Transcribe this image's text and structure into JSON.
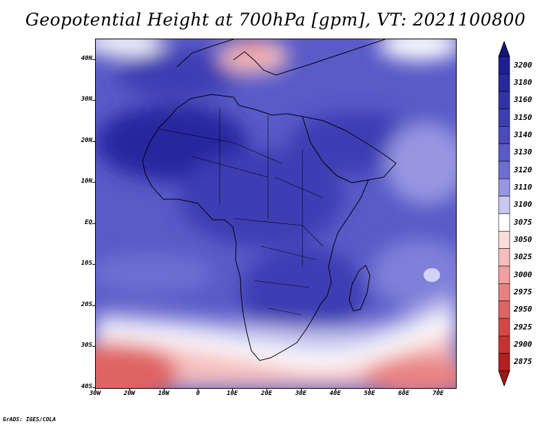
{
  "title": "Geopotential Height at 700hPa [gpm], VT: 2021100800",
  "footer": "GrADS: IGES/COLA",
  "map": {
    "lon_range": [
      -30,
      75
    ],
    "lat_range": [
      -40,
      45
    ],
    "lat_ticks": [
      {
        "lat": 40,
        "label": "40N"
      },
      {
        "lat": 30,
        "label": "30N"
      },
      {
        "lat": 20,
        "label": "20N"
      },
      {
        "lat": 10,
        "label": "10N"
      },
      {
        "lat": 0,
        "label": "EQ"
      },
      {
        "lat": -10,
        "label": "10S"
      },
      {
        "lat": -20,
        "label": "20S"
      },
      {
        "lat": -30,
        "label": "30S"
      },
      {
        "lat": -40,
        "label": "40S"
      }
    ],
    "lon_ticks": [
      {
        "lon": -30,
        "label": "30W"
      },
      {
        "lon": -20,
        "label": "20W"
      },
      {
        "lon": -10,
        "label": "10W"
      },
      {
        "lon": 0,
        "label": "0"
      },
      {
        "lon": 10,
        "label": "10E"
      },
      {
        "lon": 20,
        "label": "20E"
      },
      {
        "lon": 30,
        "label": "30E"
      },
      {
        "lon": 40,
        "label": "40E"
      },
      {
        "lon": 50,
        "label": "50E"
      },
      {
        "lon": 60,
        "label": "60E"
      },
      {
        "lon": 70,
        "label": "70E"
      }
    ]
  },
  "colorbar": {
    "levels": [
      {
        "label": "3200",
        "color": "#1e1e96"
      },
      {
        "label": "3180",
        "color": "#28289f"
      },
      {
        "label": "3160",
        "color": "#3232a8"
      },
      {
        "label": "3150",
        "color": "#3e3eb4"
      },
      {
        "label": "3140",
        "color": "#4a4abe"
      },
      {
        "label": "3130",
        "color": "#5a5ac8"
      },
      {
        "label": "3120",
        "color": "#6e6ed2"
      },
      {
        "label": "3110",
        "color": "#9696e1"
      },
      {
        "label": "3100",
        "color": "#c8c8f0"
      },
      {
        "label": "3075",
        "color": "#ffffff"
      },
      {
        "label": "3050",
        "color": "#fadcdc"
      },
      {
        "label": "3025",
        "color": "#f5bebe"
      },
      {
        "label": "3000",
        "color": "#f0a0a0"
      },
      {
        "label": "2975",
        "color": "#e88282"
      },
      {
        "label": "2950",
        "color": "#e06464"
      },
      {
        "label": "2925",
        "color": "#d64646"
      },
      {
        "label": "2900",
        "color": "#c83232"
      },
      {
        "label": "2875",
        "color": "#b41e1e"
      }
    ],
    "top_arrow_color": "#141478",
    "bottom_arrow_color": "#a01414"
  }
}
